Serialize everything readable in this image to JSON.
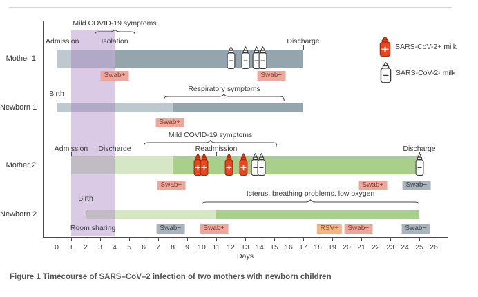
{
  "figure": {
    "caption": "Figure 1 Timecourse of SARS–CoV–2 infection of two mothers with newborn children"
  },
  "legend": {
    "items": [
      {
        "icon": "milk-bottle-positive-icon",
        "kind": "pos",
        "label": "SARS-CoV-2+ milk"
      },
      {
        "icon": "milk-bottle-negative-icon",
        "kind": "neg",
        "label": "SARS-CoV-2- milk"
      }
    ]
  },
  "colors": {
    "slate_light": "#bdc9cf",
    "slate_dark": "#94a5ad",
    "green_light": "#d6e7c5",
    "green_dark": "#a9cf8c",
    "purple_band": "rgba(163,122,192,0.40)",
    "bottle_positive": "#e8461e",
    "bottle_positive_stroke": "#a12c0e",
    "bottle_negative_stroke": "#383838",
    "axis": "#4a4a4a"
  },
  "chart_data": {
    "type": "bar",
    "subtype": "gantt-timeline",
    "title": "",
    "x_axis": {
      "label": "Days",
      "ticks": [
        0,
        1,
        2,
        3,
        4,
        5,
        6,
        7,
        8,
        9,
        10,
        11,
        12,
        13,
        14,
        15,
        16,
        17,
        18,
        19,
        20,
        21,
        22,
        23,
        24,
        25,
        26
      ]
    },
    "xlim": [
      0,
      26
    ],
    "bands": [
      {
        "label": "Room sharing",
        "start_day": 1,
        "end_day": 4,
        "style": "purple"
      }
    ],
    "rows": [
      {
        "label": "Mother 1",
        "segments": [
          {
            "start_day": 0,
            "end_day": 4,
            "palette": "slate",
            "shade": "light"
          },
          {
            "start_day": 4,
            "end_day": 17,
            "palette": "slate",
            "shade": "dark"
          }
        ],
        "markers": [
          {
            "label": "Admission",
            "day": 0
          },
          {
            "label": "Isolation",
            "day": 4
          },
          {
            "label": "Discharge",
            "day": 17
          }
        ],
        "brace": {
          "label": "Mild COVID-19 symptoms",
          "start_day": 2.6,
          "end_day": 5.4
        },
        "bottles": [
          {
            "day": 12,
            "result": "neg"
          },
          {
            "day": 13,
            "result": "neg"
          },
          {
            "day": 13.8,
            "result": "neg"
          },
          {
            "day": 14.2,
            "result": "neg"
          }
        ],
        "badges": [
          {
            "label": "Swab+",
            "day": 4,
            "kind": "pos"
          },
          {
            "label": "Swab+",
            "day": 14.8,
            "kind": "pos"
          }
        ]
      },
      {
        "label": "Newborn 1",
        "segments": [
          {
            "start_day": 0,
            "end_day": 8,
            "palette": "slate",
            "shade": "light"
          },
          {
            "start_day": 8,
            "end_day": 17,
            "palette": "slate",
            "shade": "dark"
          }
        ],
        "markers": [
          {
            "label": "Birth",
            "day": 0
          }
        ],
        "brace": {
          "label": "Respiratory symptoms",
          "start_day": 7.4,
          "end_day": 15.7
        },
        "bottles": [],
        "badges": [
          {
            "label": "Swab+",
            "day": 7.8,
            "kind": "pos"
          }
        ]
      },
      {
        "label": "Mother 2",
        "segments": [
          {
            "start_day": 1,
            "end_day": 8,
            "palette": "green",
            "shade": "light"
          },
          {
            "start_day": 8,
            "end_day": 25,
            "palette": "green",
            "shade": "dark"
          }
        ],
        "markers": [
          {
            "label": "Admission",
            "day": 1
          },
          {
            "label": "Discharge",
            "day": 4
          },
          {
            "label": "Readmission",
            "day": 11
          },
          {
            "label": "Discharge",
            "day": 25
          }
        ],
        "brace": {
          "label": "Mild COVID-19 symptoms",
          "start_day": 6,
          "end_day": 15.2
        },
        "bottles": [
          {
            "day": 9.75,
            "result": "pos"
          },
          {
            "day": 10.15,
            "result": "pos"
          },
          {
            "day": 11.9,
            "result": "pos"
          },
          {
            "day": 12.9,
            "result": "pos"
          },
          {
            "day": 13.7,
            "result": "neg"
          },
          {
            "day": 14.1,
            "result": "neg"
          },
          {
            "day": 25,
            "result": "neg"
          }
        ],
        "badges": [
          {
            "label": "Swab+",
            "day": 7.9,
            "kind": "pos"
          },
          {
            "label": "Swab+",
            "day": 21.8,
            "kind": "pos"
          },
          {
            "label": "Swab−",
            "day": 24.8,
            "kind": "neg"
          }
        ]
      },
      {
        "label": "Newborn 2",
        "segments": [
          {
            "start_day": 2,
            "end_day": 11,
            "palette": "green",
            "shade": "light"
          },
          {
            "start_day": 11,
            "end_day": 25,
            "palette": "green",
            "shade": "dark"
          }
        ],
        "markers": [
          {
            "label": "Birth",
            "day": 2
          }
        ],
        "brace": {
          "label": "Icterus, breathing problems, low oxygen",
          "start_day": 10,
          "end_day": 25
        },
        "bottles": [],
        "badges": [
          {
            "label": "Swab−",
            "day": 7.85,
            "kind": "neg"
          },
          {
            "label": "Swab+",
            "day": 10.85,
            "kind": "pos"
          },
          {
            "label": "RSV+",
            "day": 18.8,
            "kind": "rsv"
          },
          {
            "label": "Swab+",
            "day": 20.8,
            "kind": "pos"
          },
          {
            "label": "Swab−",
            "day": 24.75,
            "kind": "neg"
          }
        ]
      }
    ]
  }
}
